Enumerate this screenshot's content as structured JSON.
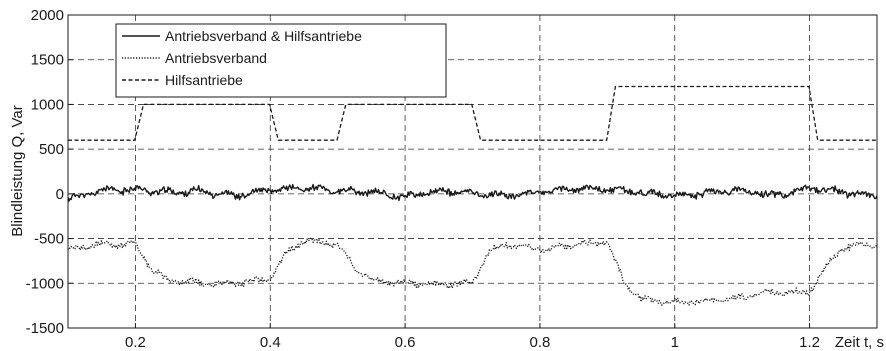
{
  "chart_data": {
    "type": "line",
    "title": "",
    "xlabel": "Zeit t, s",
    "ylabel": "Blindleistung Q, Var",
    "xlim": [
      0.1,
      1.3
    ],
    "ylim": [
      -1500,
      2000
    ],
    "xticks": [
      0.2,
      0.4,
      0.6,
      0.8,
      1,
      1.2
    ],
    "xtick_labels": [
      "0.2",
      "0.4",
      "0.6",
      "0.8",
      "1",
      "1.2"
    ],
    "yticks": [
      -1500,
      -1000,
      -500,
      0,
      500,
      1000,
      1500,
      2000
    ],
    "ytick_labels": [
      "-1500",
      "-1000",
      "-500",
      "0",
      "500",
      "1000",
      "1500",
      "2000"
    ],
    "grid": true,
    "legend_position": "top-left",
    "series": [
      {
        "name": "Antriebsverband & Hilfsantriebe",
        "style": "solid",
        "color": "#1a1a1a",
        "x": [
          0.1,
          0.15,
          0.2,
          0.25,
          0.3,
          0.35,
          0.4,
          0.45,
          0.5,
          0.55,
          0.6,
          0.65,
          0.7,
          0.75,
          0.8,
          0.85,
          0.9,
          0.95,
          1.0,
          1.05,
          1.1,
          1.15,
          1.2,
          1.25,
          1.3
        ],
        "y": [
          -60,
          40,
          50,
          20,
          30,
          -20,
          40,
          70,
          30,
          20,
          -30,
          30,
          10,
          -20,
          20,
          60,
          50,
          20,
          -30,
          20,
          40,
          -20,
          60,
          20,
          -20
        ]
      },
      {
        "name": "Antriebsverband",
        "style": "dotted",
        "color": "#1a1a1a",
        "x": [
          0.1,
          0.13,
          0.16,
          0.2,
          0.225,
          0.25,
          0.3,
          0.35,
          0.4,
          0.425,
          0.45,
          0.5,
          0.525,
          0.55,
          0.6,
          0.65,
          0.7,
          0.725,
          0.75,
          0.8,
          0.85,
          0.9,
          0.925,
          0.95,
          1.0,
          1.05,
          1.1,
          1.15,
          1.2,
          1.225,
          1.25,
          1.3
        ],
        "y": [
          -650,
          -580,
          -560,
          -560,
          -850,
          -970,
          -1000,
          -1000,
          -950,
          -650,
          -520,
          -560,
          -830,
          -960,
          -1000,
          -1010,
          -1000,
          -640,
          -570,
          -620,
          -570,
          -540,
          -1000,
          -1180,
          -1220,
          -1200,
          -1160,
          -1100,
          -1100,
          -800,
          -600,
          -560
        ]
      },
      {
        "name": "Hilfsantriebe",
        "style": "dashed",
        "color": "#1a1a1a",
        "x": [
          0.1,
          0.199,
          0.212,
          0.399,
          0.412,
          0.499,
          0.512,
          0.699,
          0.712,
          0.899,
          0.912,
          1.199,
          1.212,
          1.3
        ],
        "y": [
          600,
          600,
          1000,
          1000,
          600,
          600,
          1000,
          1000,
          600,
          600,
          1200,
          1200,
          600,
          600
        ]
      }
    ]
  }
}
